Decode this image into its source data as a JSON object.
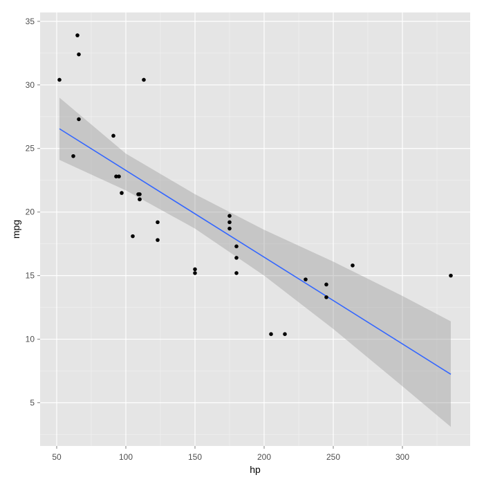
{
  "chart_data": {
    "type": "scatter",
    "xlabel": "hp",
    "ylabel": "mpg",
    "xlim": [
      38,
      349
    ],
    "ylim": [
      1.6,
      35.7
    ],
    "x_ticks": [
      50,
      100,
      150,
      200,
      250,
      300
    ],
    "y_ticks": [
      5,
      10,
      15,
      20,
      25,
      30,
      35
    ],
    "grid": true,
    "points": {
      "x": [
        110,
        110,
        93,
        110,
        175,
        105,
        245,
        62,
        95,
        123,
        123,
        180,
        180,
        180,
        205,
        215,
        230,
        66,
        52,
        65,
        97,
        150,
        150,
        245,
        175,
        66,
        91,
        113,
        264,
        175,
        335,
        109
      ],
      "y": [
        21.0,
        21.0,
        22.8,
        21.4,
        18.7,
        18.1,
        14.3,
        24.4,
        22.8,
        19.2,
        17.8,
        16.4,
        17.3,
        15.2,
        10.4,
        10.4,
        14.7,
        32.4,
        30.4,
        33.9,
        21.5,
        15.5,
        15.2,
        13.3,
        19.2,
        27.3,
        26.0,
        30.4,
        15.8,
        19.7,
        15.0,
        21.4
      ]
    },
    "trend": {
      "method": "lm",
      "x": [
        52,
        335
      ],
      "y": [
        26.55,
        7.24
      ]
    },
    "confidence_band": {
      "x": [
        52,
        100,
        150,
        200,
        250,
        300,
        335
      ],
      "lower": [
        24.1,
        21.7,
        18.7,
        15.0,
        10.8,
        6.3,
        3.1
      ],
      "upper": [
        29.0,
        24.6,
        21.4,
        18.6,
        16.1,
        13.4,
        11.4
      ]
    },
    "colors": {
      "panel_bg": "#e5e5e5",
      "grid_major": "#ffffff",
      "grid_minor": "#f2f2f2",
      "point": "#000000",
      "line": "#3366ff",
      "band": "#999999"
    }
  }
}
